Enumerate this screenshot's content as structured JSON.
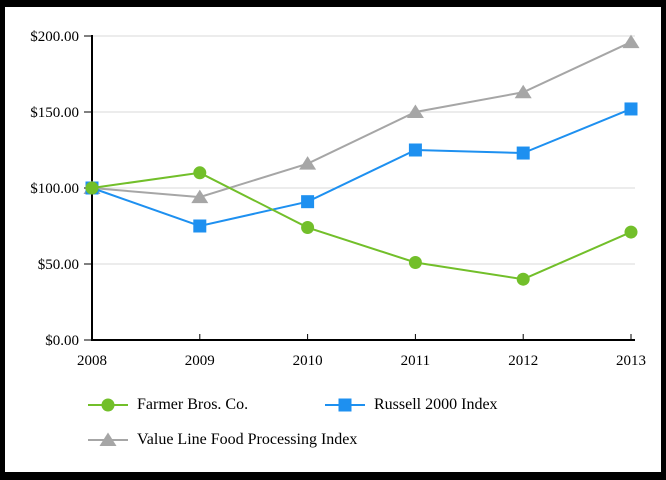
{
  "chart_data": {
    "type": "line",
    "title": "",
    "xlabel": "",
    "ylabel": "",
    "x_labels": [
      "2008",
      "2009",
      "2010",
      "2011",
      "2012",
      "2013"
    ],
    "y_ticks": [
      0,
      50,
      100,
      150,
      200
    ],
    "y_tick_labels": [
      "$0.00",
      "$50.00",
      "$100.00",
      "$150.00",
      "$200.00"
    ],
    "ylim": [
      0,
      200
    ],
    "grid": "horizontal gridlines at each $50",
    "legend_position": "below chart, two rows, left aligned",
    "series": [
      {
        "name": "Farmer Bros. Co.",
        "marker": "circle",
        "color": "#72BF2A",
        "values": [
          100,
          110,
          74,
          51,
          40,
          71
        ]
      },
      {
        "name": "Russell 2000 Index",
        "marker": "square",
        "color": "#1E90F0",
        "values": [
          100,
          75,
          91,
          125,
          123,
          152
        ]
      },
      {
        "name": "Value Line Food Processing Index",
        "marker": "triangle",
        "color": "#A6A6A6",
        "values": [
          100,
          94,
          116,
          150,
          163,
          196
        ]
      }
    ],
    "axis_color": "#000000",
    "gridline_color": "#DADADA",
    "background_color": "#FFFFFF",
    "frame_color": "#000000"
  }
}
